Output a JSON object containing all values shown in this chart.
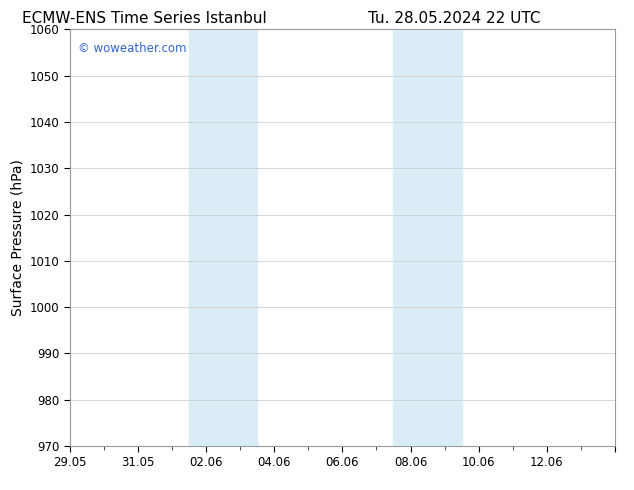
{
  "title_left": "ECMW-ENS Time Series Istanbul",
  "title_right": "Tu. 28.05.2024 22 UTC",
  "ylabel": "Surface Pressure (hPa)",
  "ylim": [
    970,
    1060
  ],
  "yticks": [
    970,
    980,
    990,
    1000,
    1010,
    1020,
    1030,
    1040,
    1050,
    1060
  ],
  "xlim": [
    0,
    16
  ],
  "xtick_positions": [
    0,
    2,
    4,
    6,
    8,
    10,
    12,
    14,
    16
  ],
  "xtick_labels": [
    "29.05",
    "31.05",
    "02.06",
    "04.06",
    "06.06",
    "08.06",
    "10.06",
    "12.06",
    ""
  ],
  "shaded_regions": [
    {
      "xstart": 3.5,
      "xend": 5.5,
      "color": "#daedf7"
    },
    {
      "xstart": 9.5,
      "xend": 11.5,
      "color": "#daedf7"
    }
  ],
  "watermark_text": "© woweather.com",
  "watermark_color": "#3366cc",
  "background_color": "#ffffff",
  "plot_bg_color": "#ffffff",
  "grid_color": "#c8c8c8",
  "title_fontsize": 11,
  "axis_label_fontsize": 10,
  "tick_fontsize": 8.5
}
